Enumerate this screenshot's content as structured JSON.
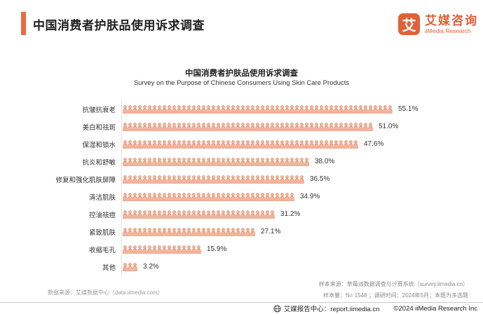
{
  "header": {
    "title": "中国消费者护肤品使用诉求调查",
    "logo": {
      "icon_char": "艾",
      "brand_cn": "艾媒咨询",
      "brand_en": "iiMedia Research"
    }
  },
  "chart": {
    "title": "中国消费者护肤品使用诉求调查",
    "subtitle": "Survey on the Purpose of Chinese Consumers Using Skin Care Products"
  },
  "chart_data": {
    "type": "bar",
    "orientation": "horizontal",
    "style": "pictogram",
    "unit_icon": "person-icon",
    "units_per_icon_percent": 1,
    "title": "中国消费者护肤品使用诉求调查",
    "subtitle": "Survey on the Purpose of Chinese Consumers Using Skin Care Products",
    "categories": [
      "抗皱抗衰老",
      "美白和祛斑",
      "保湿和锁水",
      "抗炎和舒敏",
      "修复和强化肌肤屏障",
      "清洁肌肤",
      "控油祛痘",
      "紧致肌肤",
      "收缩毛孔",
      "其他"
    ],
    "values": [
      55.1,
      51.0,
      47.6,
      38.0,
      36.5,
      34.9,
      31.2,
      27.1,
      15.9,
      3.2
    ],
    "value_labels": [
      "55.1%",
      "51.0%",
      "47.6%",
      "38.0%",
      "36.5%",
      "34.9%",
      "31.2%",
      "27.1%",
      "15.9%",
      "3.2%"
    ],
    "xlim": [
      0,
      60
    ],
    "grid": false,
    "legend": "none"
  },
  "footnotes": {
    "source_left": "数据来源：艾媒数据中心（data.iimedia.com）",
    "sample_source": "样本来源：草莓派数据调查与计算系统（survey.iimedia.cn）",
    "sample_info": "样本量：N= 1548 ；调研时间：2024年5月；本题为多选题"
  },
  "bottom_bar": {
    "report_center": "艾媒报告中心：report.iimedia.cn",
    "copyright": "©2024  iiMedia Research Inc"
  },
  "colors": {
    "accent_orange": "#EB6A3F",
    "logo_orange": "#E2603A",
    "bar_fill": "#F3B49B",
    "bar_stroke": "#DE8260",
    "axis_line": "#e2e2e2",
    "text_dark": "#333333",
    "footnote_gray": "#9a9a9a"
  }
}
